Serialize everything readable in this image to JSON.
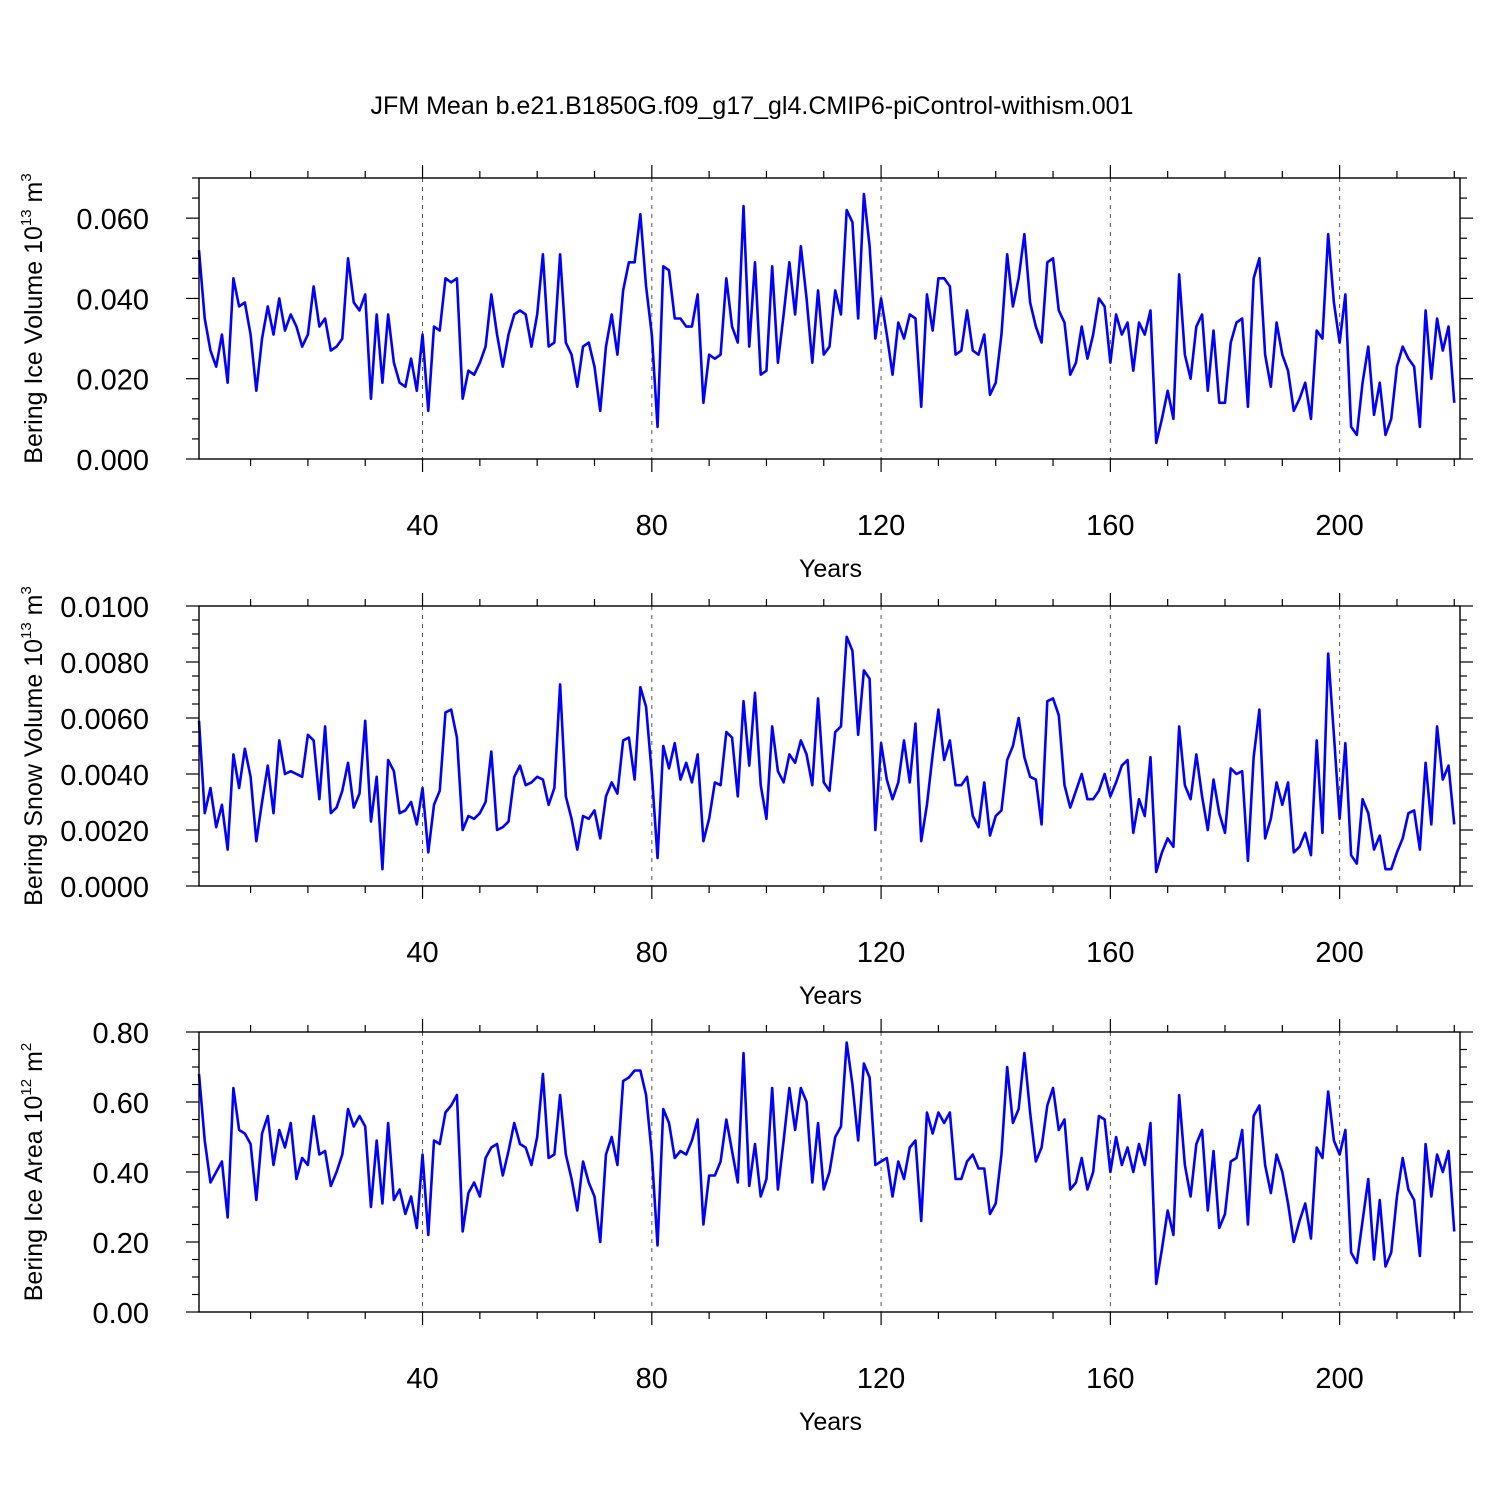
{
  "title": "JFM Mean b.e21.B1850G.f09_g17_gl4.CMIP6-piControl-withism.001",
  "colors": {
    "line": "#0000ff",
    "axis": "#000000",
    "grid": "#555555"
  },
  "chart_data": [
    {
      "type": "line",
      "ylabel_main": "Bering Ice Volume 10",
      "ylabel_exp": "13",
      "ylabel_unit": " m",
      "ylabel_unit_exp": "3",
      "xlabel": "Years",
      "xlim": [
        1,
        221
      ],
      "ylim": [
        0.0,
        0.07
      ],
      "xticks": [
        40,
        80,
        120,
        160,
        200
      ],
      "xtick_labels": [
        "40",
        "80",
        "120",
        "160",
        "200"
      ],
      "yticks": [
        0.0,
        0.02,
        0.04,
        0.06
      ],
      "ytick_labels": [
        "0.000",
        "0.020",
        "0.040",
        "0.060"
      ],
      "x_start": 1,
      "values": [
        0.052,
        0.035,
        0.027,
        0.023,
        0.031,
        0.019,
        0.045,
        0.038,
        0.039,
        0.031,
        0.017,
        0.03,
        0.038,
        0.031,
        0.04,
        0.032,
        0.036,
        0.033,
        0.028,
        0.031,
        0.043,
        0.033,
        0.035,
        0.027,
        0.028,
        0.03,
        0.05,
        0.039,
        0.037,
        0.041,
        0.015,
        0.036,
        0.019,
        0.036,
        0.024,
        0.019,
        0.018,
        0.025,
        0.017,
        0.031,
        0.012,
        0.033,
        0.032,
        0.045,
        0.044,
        0.045,
        0.015,
        0.022,
        0.021,
        0.024,
        0.028,
        0.041,
        0.031,
        0.023,
        0.031,
        0.036,
        0.037,
        0.036,
        0.028,
        0.036,
        0.051,
        0.028,
        0.029,
        0.051,
        0.029,
        0.026,
        0.018,
        0.028,
        0.029,
        0.023,
        0.012,
        0.028,
        0.036,
        0.026,
        0.042,
        0.049,
        0.049,
        0.061,
        0.043,
        0.031,
        0.008,
        0.048,
        0.047,
        0.035,
        0.035,
        0.033,
        0.033,
        0.041,
        0.014,
        0.026,
        0.025,
        0.026,
        0.045,
        0.033,
        0.029,
        0.063,
        0.028,
        0.049,
        0.021,
        0.022,
        0.048,
        0.024,
        0.036,
        0.049,
        0.036,
        0.053,
        0.04,
        0.024,
        0.042,
        0.026,
        0.028,
        0.042,
        0.036,
        0.062,
        0.059,
        0.035,
        0.066,
        0.053,
        0.03,
        0.04,
        0.031,
        0.021,
        0.034,
        0.03,
        0.036,
        0.035,
        0.013,
        0.041,
        0.032,
        0.045,
        0.045,
        0.043,
        0.026,
        0.027,
        0.037,
        0.027,
        0.026,
        0.031,
        0.016,
        0.019,
        0.031,
        0.051,
        0.038,
        0.045,
        0.056,
        0.039,
        0.033,
        0.029,
        0.049,
        0.05,
        0.037,
        0.034,
        0.021,
        0.024,
        0.033,
        0.025,
        0.031,
        0.04,
        0.038,
        0.024,
        0.036,
        0.031,
        0.034,
        0.022,
        0.034,
        0.031,
        0.037,
        0.004,
        0.01,
        0.017,
        0.01,
        0.046,
        0.026,
        0.02,
        0.033,
        0.036,
        0.017,
        0.032,
        0.014,
        0.014,
        0.029,
        0.034,
        0.035,
        0.013,
        0.045,
        0.05,
        0.026,
        0.018,
        0.034,
        0.026,
        0.022,
        0.012,
        0.015,
        0.019,
        0.01,
        0.032,
        0.03,
        0.056,
        0.039,
        0.029,
        0.041,
        0.008,
        0.006,
        0.019,
        0.028,
        0.011,
        0.019,
        0.006,
        0.01,
        0.023,
        0.028,
        0.025,
        0.023,
        0.008,
        0.037,
        0.02,
        0.035,
        0.027,
        0.033,
        0.014
      ]
    },
    {
      "type": "line",
      "ylabel_main": "Bering Snow Volume 10",
      "ylabel_exp": "13",
      "ylabel_unit": " m",
      "ylabel_unit_exp": "3",
      "xlabel": "Years",
      "xlim": [
        1,
        221
      ],
      "ylim": [
        0.0,
        0.01
      ],
      "xticks": [
        40,
        80,
        120,
        160,
        200
      ],
      "xtick_labels": [
        "40",
        "80",
        "120",
        "160",
        "200"
      ],
      "yticks": [
        0.0,
        0.002,
        0.004,
        0.006,
        0.008,
        0.01
      ],
      "ytick_labels": [
        "0.0000",
        "0.0020",
        "0.0040",
        "0.0060",
        "0.0080",
        "0.0100"
      ],
      "x_start": 1,
      "values": [
        0.0059,
        0.0026,
        0.0035,
        0.0021,
        0.0029,
        0.0013,
        0.0047,
        0.0035,
        0.0049,
        0.0039,
        0.0016,
        0.003,
        0.0043,
        0.0026,
        0.0052,
        0.004,
        0.0041,
        0.004,
        0.0039,
        0.0054,
        0.0052,
        0.0031,
        0.0057,
        0.0026,
        0.0028,
        0.0034,
        0.0044,
        0.0028,
        0.0033,
        0.0059,
        0.0023,
        0.0039,
        0.0006,
        0.0045,
        0.0041,
        0.0026,
        0.0027,
        0.003,
        0.0022,
        0.0035,
        0.0012,
        0.0029,
        0.0034,
        0.0062,
        0.0063,
        0.0053,
        0.002,
        0.0025,
        0.0024,
        0.0026,
        0.003,
        0.0048,
        0.002,
        0.0021,
        0.0023,
        0.0039,
        0.0043,
        0.0036,
        0.0037,
        0.0039,
        0.0038,
        0.0029,
        0.0035,
        0.0072,
        0.0032,
        0.0024,
        0.0013,
        0.0025,
        0.0024,
        0.0027,
        0.0017,
        0.0032,
        0.0037,
        0.0033,
        0.0052,
        0.0053,
        0.0038,
        0.0071,
        0.0064,
        0.004,
        0.001,
        0.005,
        0.0042,
        0.0051,
        0.0038,
        0.0044,
        0.0037,
        0.0047,
        0.0016,
        0.0024,
        0.0037,
        0.0036,
        0.0055,
        0.0053,
        0.0032,
        0.0066,
        0.0043,
        0.0069,
        0.0036,
        0.0024,
        0.0057,
        0.0041,
        0.0037,
        0.0047,
        0.0044,
        0.0052,
        0.0047,
        0.0036,
        0.0067,
        0.0037,
        0.0034,
        0.0055,
        0.0057,
        0.0089,
        0.0084,
        0.0054,
        0.0077,
        0.0074,
        0.002,
        0.0051,
        0.0038,
        0.0031,
        0.0037,
        0.0052,
        0.0037,
        0.0058,
        0.0016,
        0.0029,
        0.0047,
        0.0063,
        0.0045,
        0.0052,
        0.0036,
        0.0036,
        0.0039,
        0.0025,
        0.0021,
        0.0037,
        0.0018,
        0.0025,
        0.0027,
        0.0045,
        0.005,
        0.006,
        0.0046,
        0.0039,
        0.0038,
        0.0022,
        0.0066,
        0.0067,
        0.0061,
        0.0036,
        0.0028,
        0.0034,
        0.004,
        0.0031,
        0.0031,
        0.0034,
        0.004,
        0.0032,
        0.0037,
        0.0043,
        0.0045,
        0.0019,
        0.0031,
        0.0025,
        0.0046,
        0.0005,
        0.0012,
        0.0017,
        0.0014,
        0.0057,
        0.0036,
        0.0031,
        0.0047,
        0.0032,
        0.002,
        0.0038,
        0.0026,
        0.0019,
        0.0042,
        0.004,
        0.0041,
        0.0009,
        0.0046,
        0.0063,
        0.0017,
        0.0024,
        0.0037,
        0.0029,
        0.0037,
        0.0012,
        0.0014,
        0.0019,
        0.0011,
        0.0052,
        0.0019,
        0.0083,
        0.0054,
        0.0024,
        0.0051,
        0.0011,
        0.0008,
        0.0031,
        0.0026,
        0.0013,
        0.0018,
        0.0006,
        0.0006,
        0.0012,
        0.0017,
        0.0026,
        0.0027,
        0.0013,
        0.0044,
        0.0022,
        0.0057,
        0.0038,
        0.0043,
        0.0022
      ]
    },
    {
      "type": "line",
      "ylabel_main": "Bering Ice Area 10",
      "ylabel_exp": "12",
      "ylabel_unit": " m",
      "ylabel_unit_exp": "2",
      "xlabel": "Years",
      "xlim": [
        1,
        221
      ],
      "ylim": [
        0.0,
        0.8
      ],
      "xticks": [
        40,
        80,
        120,
        160,
        200
      ],
      "xtick_labels": [
        "40",
        "80",
        "120",
        "160",
        "200"
      ],
      "yticks": [
        0.0,
        0.2,
        0.4,
        0.6,
        0.8
      ],
      "ytick_labels": [
        "0.00",
        "0.20",
        "0.40",
        "0.60",
        "0.80"
      ],
      "x_start": 1,
      "values": [
        0.68,
        0.49,
        0.37,
        0.4,
        0.43,
        0.27,
        0.64,
        0.52,
        0.51,
        0.48,
        0.32,
        0.51,
        0.56,
        0.42,
        0.52,
        0.47,
        0.54,
        0.38,
        0.44,
        0.42,
        0.56,
        0.45,
        0.46,
        0.36,
        0.4,
        0.45,
        0.58,
        0.53,
        0.56,
        0.53,
        0.3,
        0.49,
        0.31,
        0.54,
        0.32,
        0.35,
        0.28,
        0.33,
        0.24,
        0.45,
        0.22,
        0.49,
        0.48,
        0.57,
        0.59,
        0.62,
        0.23,
        0.34,
        0.37,
        0.33,
        0.44,
        0.47,
        0.48,
        0.39,
        0.46,
        0.54,
        0.48,
        0.47,
        0.42,
        0.5,
        0.68,
        0.44,
        0.45,
        0.62,
        0.45,
        0.38,
        0.29,
        0.43,
        0.37,
        0.33,
        0.2,
        0.45,
        0.5,
        0.42,
        0.66,
        0.67,
        0.69,
        0.69,
        0.62,
        0.45,
        0.19,
        0.58,
        0.54,
        0.44,
        0.46,
        0.45,
        0.49,
        0.55,
        0.25,
        0.39,
        0.39,
        0.43,
        0.55,
        0.46,
        0.37,
        0.74,
        0.36,
        0.48,
        0.33,
        0.38,
        0.64,
        0.35,
        0.49,
        0.64,
        0.52,
        0.64,
        0.6,
        0.37,
        0.54,
        0.35,
        0.4,
        0.5,
        0.53,
        0.77,
        0.65,
        0.49,
        0.71,
        0.67,
        0.42,
        0.43,
        0.44,
        0.33,
        0.43,
        0.38,
        0.47,
        0.49,
        0.26,
        0.57,
        0.51,
        0.57,
        0.54,
        0.57,
        0.38,
        0.38,
        0.43,
        0.45,
        0.41,
        0.41,
        0.28,
        0.31,
        0.45,
        0.7,
        0.54,
        0.58,
        0.74,
        0.57,
        0.43,
        0.47,
        0.59,
        0.64,
        0.52,
        0.55,
        0.35,
        0.37,
        0.44,
        0.35,
        0.4,
        0.56,
        0.55,
        0.4,
        0.5,
        0.42,
        0.47,
        0.4,
        0.48,
        0.42,
        0.54,
        0.08,
        0.18,
        0.29,
        0.22,
        0.62,
        0.42,
        0.33,
        0.48,
        0.52,
        0.29,
        0.46,
        0.24,
        0.28,
        0.43,
        0.44,
        0.52,
        0.25,
        0.56,
        0.59,
        0.42,
        0.34,
        0.45,
        0.4,
        0.31,
        0.2,
        0.26,
        0.31,
        0.21,
        0.47,
        0.44,
        0.63,
        0.49,
        0.45,
        0.52,
        0.17,
        0.14,
        0.26,
        0.38,
        0.15,
        0.32,
        0.13,
        0.17,
        0.33,
        0.44,
        0.35,
        0.32,
        0.16,
        0.48,
        0.33,
        0.45,
        0.4,
        0.46,
        0.23
      ]
    }
  ]
}
